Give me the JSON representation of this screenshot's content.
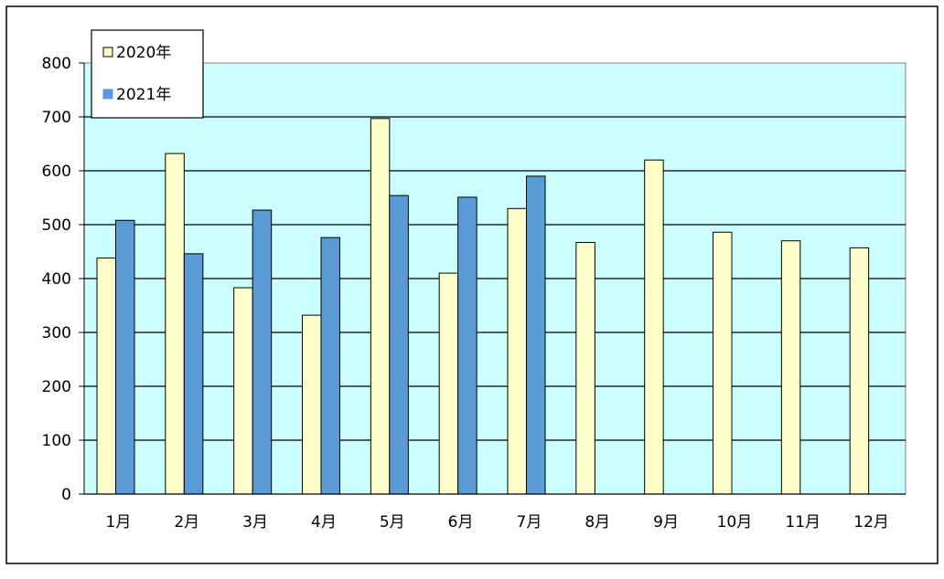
{
  "chart_data": {
    "type": "bar",
    "title": "",
    "xlabel": "",
    "ylabel": "",
    "categories": [
      "1月",
      "2月",
      "3月",
      "4月",
      "5月",
      "6月",
      "7月",
      "8月",
      "9月",
      "10月",
      "11月",
      "12月"
    ],
    "series": [
      {
        "name": "2020年",
        "color": "#ffffcc",
        "values": [
          438,
          632,
          383,
          332,
          697,
          410,
          530,
          467,
          620,
          486,
          470,
          457
        ]
      },
      {
        "name": "2021年",
        "color": "#5b9bd5",
        "values": [
          508,
          446,
          527,
          476,
          554,
          551,
          590,
          null,
          null,
          null,
          null,
          null
        ]
      }
    ],
    "ylim": [
      0,
      800
    ],
    "yticks": [
      0,
      100,
      200,
      300,
      400,
      500,
      600,
      700,
      800
    ],
    "grid": true,
    "plot_background": "#ccffff",
    "legend_position": "top-left"
  }
}
